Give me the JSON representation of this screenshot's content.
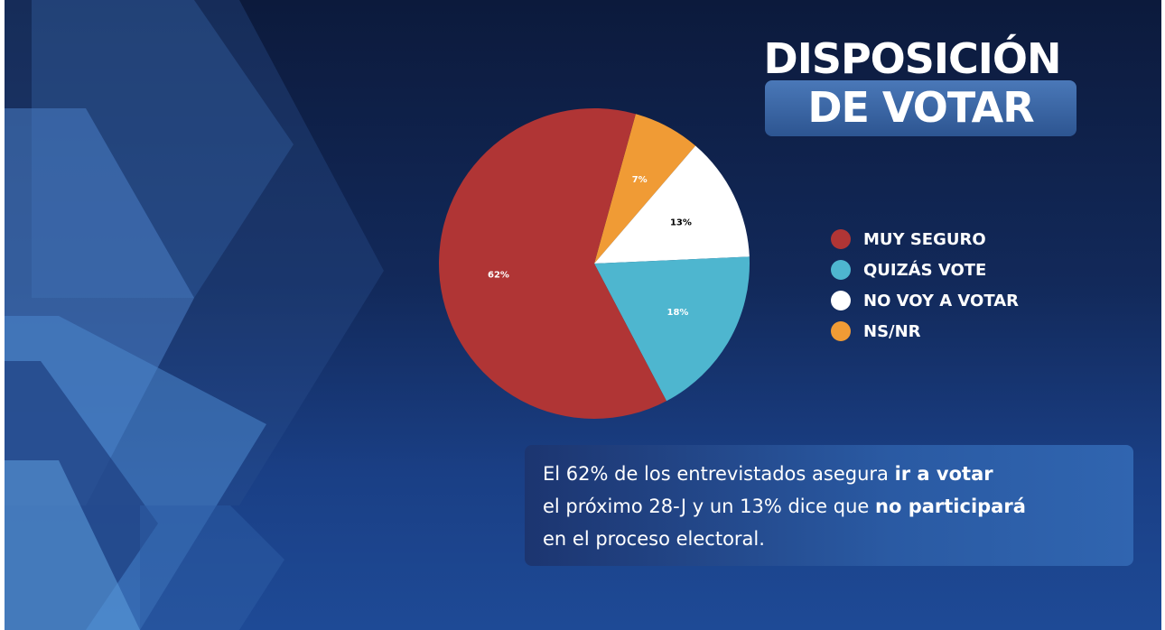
{
  "title": {
    "line1": "DISPOSICIÓN",
    "line2": "DE VOTAR"
  },
  "chart_data": {
    "type": "pie",
    "categories": [
      "MUY SEGURO",
      "QUIZÁS VOTE",
      "NO VOY A VOTAR",
      "NS/NR"
    ],
    "values": [
      62,
      18,
      13,
      7
    ],
    "value_labels": [
      "62%",
      "18%",
      "13%",
      "7%"
    ],
    "colors": [
      "#b03535",
      "#4eb6cf",
      "#ffffff",
      "#f09b35"
    ],
    "label_colors": [
      "#ffffff",
      "#ffffff",
      "#000000",
      "#ffffff"
    ],
    "legend_position": "right"
  },
  "note": {
    "line1_pre": "El 62% de los entrevistados asegura ",
    "line1_bold": "ir a votar",
    "line2_pre": "el próximo 28-J y un 13% dice que ",
    "line2_bold": "no participará",
    "line3": "en el proceso electoral."
  }
}
